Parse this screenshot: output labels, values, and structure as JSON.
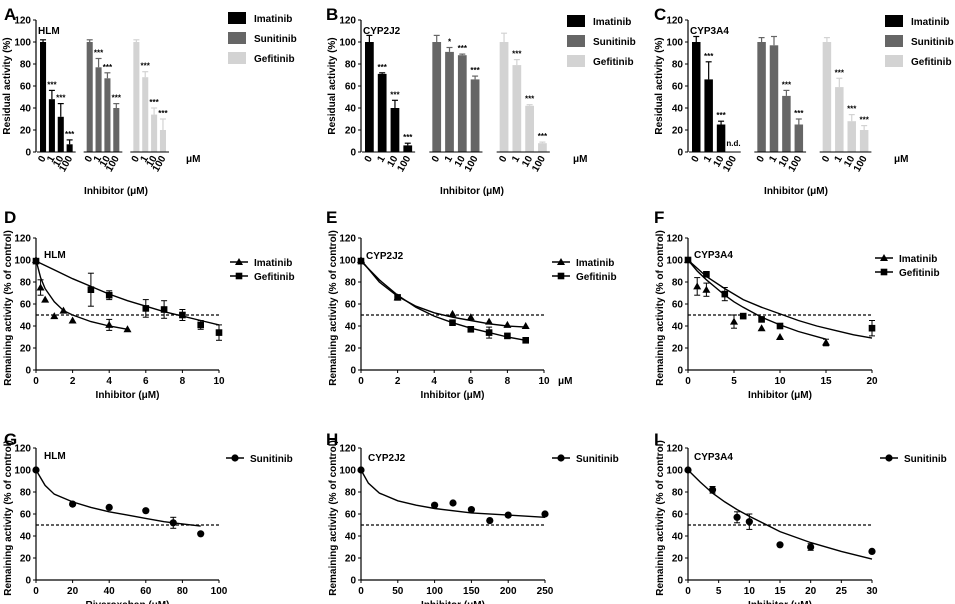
{
  "colors": {
    "imatinib": "#000000",
    "sunitinib": "#666666",
    "gefitinib": "#d3d3d3"
  },
  "chart_data": [
    {
      "panel": "A",
      "type": "bar",
      "title": "HLM",
      "ylabel": "Residual activity (%)",
      "xlabel": "Inhibitor (μM)",
      "unit": "μM",
      "ylim": [
        0,
        120
      ],
      "yticks": [
        0,
        20,
        40,
        60,
        80,
        100,
        120
      ],
      "concentrations": [
        "0",
        "1",
        "10",
        "100"
      ],
      "series": [
        {
          "name": "Imatinib",
          "color": "#000000",
          "values": [
            100,
            48,
            32,
            7
          ],
          "errors": [
            2,
            8,
            12,
            4
          ],
          "labels": [
            "",
            "***",
            "***",
            "***"
          ]
        },
        {
          "name": "Sunitinib",
          "color": "#666666",
          "values": [
            100,
            77,
            67,
            40
          ],
          "errors": [
            2,
            8,
            5,
            4
          ],
          "labels": [
            "",
            "***",
            "***",
            "***"
          ]
        },
        {
          "name": "Gefitinib",
          "color": "#d3d3d3",
          "values": [
            100,
            68,
            34,
            20
          ],
          "errors": [
            2,
            5,
            6,
            10
          ],
          "labels": [
            "",
            "***",
            "***",
            "***"
          ]
        }
      ]
    },
    {
      "panel": "B",
      "type": "bar",
      "title": "CYP2J2",
      "ylabel": "Residual activity (%)",
      "xlabel": "Inhibitor (μM)",
      "unit": "μM",
      "ylim": [
        0,
        120
      ],
      "yticks": [
        0,
        20,
        40,
        60,
        80,
        100,
        120
      ],
      "concentrations": [
        "0",
        "1",
        "10",
        "100"
      ],
      "series": [
        {
          "name": "Imatinib",
          "color": "#000000",
          "values": [
            100,
            71,
            40,
            6
          ],
          "errors": [
            6,
            1,
            7,
            2
          ],
          "labels": [
            "",
            "***",
            "***",
            "***"
          ]
        },
        {
          "name": "Sunitinib",
          "color": "#666666",
          "values": [
            100,
            91,
            88,
            66
          ],
          "errors": [
            6,
            4,
            1,
            3
          ],
          "labels": [
            "",
            "*",
            "***",
            "***"
          ]
        },
        {
          "name": "Gefitinib",
          "color": "#d3d3d3",
          "values": [
            100,
            79,
            42,
            8
          ],
          "errors": [
            8,
            5,
            1,
            1
          ],
          "labels": [
            "",
            "***",
            "***",
            "***"
          ]
        }
      ]
    },
    {
      "panel": "C",
      "type": "bar",
      "title": "CYP3A4",
      "ylabel": "Residual activity (%)",
      "xlabel": "Inhibitor (μM)",
      "unit": "μM",
      "ylim": [
        0,
        120
      ],
      "yticks": [
        0,
        20,
        40,
        60,
        80,
        100,
        120
      ],
      "concentrations": [
        "0",
        "1",
        "10",
        "100"
      ],
      "series": [
        {
          "name": "Imatinib",
          "color": "#000000",
          "values": [
            100,
            66,
            25,
            0
          ],
          "errors": [
            5,
            16,
            3,
            0
          ],
          "labels": [
            "",
            "***",
            "***",
            "n.d."
          ]
        },
        {
          "name": "Sunitinib",
          "color": "#666666",
          "values": [
            100,
            97,
            51,
            25
          ],
          "errors": [
            4,
            8,
            5,
            5
          ],
          "labels": [
            "",
            "",
            "***",
            "***"
          ]
        },
        {
          "name": "Gefitinib",
          "color": "#d3d3d3",
          "values": [
            100,
            59,
            28,
            20
          ],
          "errors": [
            4,
            8,
            6,
            4
          ],
          "labels": [
            "",
            "***",
            "***",
            "***"
          ]
        }
      ]
    },
    {
      "panel": "D",
      "type": "scatter",
      "title": "HLM",
      "ylabel": "Remaining activity (% of control)",
      "xlabel": "Inhibitor (μM)",
      "unit": "",
      "xlim": [
        0,
        10
      ],
      "xticks": [
        0,
        2,
        4,
        6,
        8,
        10
      ],
      "ylim": [
        0,
        120
      ],
      "yticks": [
        0,
        20,
        40,
        60,
        80,
        100,
        120
      ],
      "dashed": 50,
      "series": [
        {
          "name": "Imatinib",
          "marker": "triangle",
          "x": [
            0,
            0.25,
            0.5,
            1,
            1.5,
            2,
            4,
            5
          ],
          "y": [
            100,
            75,
            64,
            49,
            54,
            45,
            41,
            37
          ],
          "err": [
            0,
            7,
            0,
            0,
            0,
            0,
            5,
            0
          ],
          "fit": [
            [
              0,
              100
            ],
            [
              0.25,
              84
            ],
            [
              0.5,
              74
            ],
            [
              1,
              62
            ],
            [
              1.5,
              54
            ],
            [
              2,
              50
            ],
            [
              3,
              44
            ],
            [
              4,
              40
            ],
            [
              5,
              37
            ]
          ]
        },
        {
          "name": "Gefitinib",
          "marker": "square",
          "x": [
            0,
            3,
            4,
            6,
            7,
            8,
            9,
            10
          ],
          "y": [
            99,
            73,
            68,
            56,
            55,
            50,
            41,
            34
          ],
          "err": [
            0,
            15,
            4,
            8,
            8,
            5,
            4,
            7
          ],
          "fit": [
            [
              0,
              99
            ],
            [
              1,
              91
            ],
            [
              2,
              83
            ],
            [
              3,
              76
            ],
            [
              4,
              69
            ],
            [
              5,
              63
            ],
            [
              6,
              58
            ],
            [
              7,
              53
            ],
            [
              8,
              49
            ],
            [
              9,
              45
            ],
            [
              10,
              41
            ]
          ]
        }
      ]
    },
    {
      "panel": "E",
      "type": "scatter",
      "title": "CYP2J2",
      "ylabel": "Remaining activity (% of control)",
      "xlabel": "Inhibitor (μM)",
      "unit": "μM",
      "xlim": [
        0,
        10
      ],
      "xticks": [
        0,
        2,
        4,
        6,
        8,
        10
      ],
      "ylim": [
        0,
        120
      ],
      "yticks": [
        0,
        20,
        40,
        60,
        80,
        100,
        120
      ],
      "dashed": 50,
      "series": [
        {
          "name": "Imatinib",
          "marker": "triangle",
          "x": [
            0,
            2,
            5,
            6,
            7,
            8,
            9
          ],
          "y": [
            100,
            66,
            51,
            48,
            44,
            41,
            40
          ],
          "err": [
            0,
            0,
            0,
            0,
            0,
            0,
            0
          ],
          "fit": [
            [
              0,
              100
            ],
            [
              1,
              80
            ],
            [
              2,
              67
            ],
            [
              3,
              58
            ],
            [
              4,
              52
            ],
            [
              5,
              48
            ],
            [
              6,
              45
            ],
            [
              7,
              42
            ],
            [
              8,
              40
            ],
            [
              9,
              39
            ]
          ]
        },
        {
          "name": "Gefitinib",
          "marker": "square",
          "x": [
            0,
            2,
            5,
            6,
            7,
            8,
            9
          ],
          "y": [
            99,
            66,
            43,
            37,
            34,
            31,
            27
          ],
          "err": [
            0,
            0,
            0,
            0,
            5,
            0,
            0
          ],
          "fit": [
            [
              0,
              99
            ],
            [
              1,
              82
            ],
            [
              2,
              68
            ],
            [
              3,
              57
            ],
            [
              4,
              49
            ],
            [
              5,
              43
            ],
            [
              6,
              38
            ],
            [
              7,
              34
            ],
            [
              8,
              30
            ],
            [
              9,
              27
            ]
          ]
        }
      ]
    },
    {
      "panel": "F",
      "type": "scatter",
      "title": "CYP3A4",
      "ylabel": "Remaining activity (% of control)",
      "xlabel": "Inhibitor (μM)",
      "unit": "",
      "xlim": [
        0,
        20
      ],
      "xticks": [
        0,
        5,
        10,
        15,
        20
      ],
      "ylim": [
        0,
        120
      ],
      "yticks": [
        0,
        20,
        40,
        60,
        80,
        100,
        120
      ],
      "dashed": 50,
      "series": [
        {
          "name": "Imatinib",
          "marker": "triangle",
          "x": [
            0,
            1,
            2,
            5,
            8,
            10,
            15
          ],
          "y": [
            100,
            76,
            73,
            44,
            38,
            30,
            25
          ],
          "err": [
            0,
            8,
            6,
            6,
            0,
            0,
            3
          ],
          "fit": [
            [
              0,
              100
            ],
            [
              1,
              90
            ],
            [
              2,
              82
            ],
            [
              3,
              75
            ],
            [
              4,
              68
            ],
            [
              5,
              62
            ],
            [
              6,
              57
            ],
            [
              8,
              48
            ],
            [
              10,
              41
            ],
            [
              12,
              35
            ],
            [
              15,
              28
            ]
          ]
        },
        {
          "name": "Gefitinib",
          "marker": "square",
          "x": [
            0,
            2,
            4,
            6,
            8,
            10,
            20
          ],
          "y": [
            100,
            87,
            69,
            49,
            46,
            40,
            38
          ],
          "err": [
            0,
            0,
            6,
            0,
            0,
            0,
            7
          ],
          "fit": [
            [
              0,
              100
            ],
            [
              2,
              85
            ],
            [
              4,
              74
            ],
            [
              6,
              64
            ],
            [
              8,
              57
            ],
            [
              10,
              51
            ],
            [
              12,
              45
            ],
            [
              14,
              40
            ],
            [
              16,
              36
            ],
            [
              18,
              32
            ],
            [
              20,
              29
            ]
          ]
        }
      ]
    },
    {
      "panel": "G",
      "type": "scatter",
      "title": "HLM",
      "ylabel": "Remaining activity (% of control)",
      "xlabel": "Rivaroxaban (μM)",
      "unit": "",
      "xlim": [
        0,
        100
      ],
      "xticks": [
        0,
        20,
        40,
        60,
        80,
        100
      ],
      "ylim": [
        0,
        120
      ],
      "yticks": [
        0,
        20,
        40,
        60,
        80,
        100,
        120
      ],
      "dashed": 50,
      "series": [
        {
          "name": "Sunitinib",
          "marker": "circle",
          "x": [
            0,
            20,
            40,
            60,
            75,
            90
          ],
          "y": [
            100,
            69,
            66,
            63,
            52,
            42
          ],
          "err": [
            0,
            0,
            0,
            0,
            5,
            0
          ],
          "fit": [
            [
              0,
              100
            ],
            [
              5,
              86
            ],
            [
              10,
              78
            ],
            [
              20,
              71
            ],
            [
              30,
              66
            ],
            [
              40,
              62
            ],
            [
              50,
              59
            ],
            [
              60,
              56
            ],
            [
              70,
              53
            ],
            [
              80,
              51
            ],
            [
              90,
              49
            ]
          ]
        }
      ]
    },
    {
      "panel": "H",
      "type": "scatter",
      "title": "CYP2J2",
      "ylabel": "Remaining activity (% of control)",
      "xlabel": "Inhibitor (μM)",
      "unit": "",
      "xlim": [
        0,
        250
      ],
      "xticks": [
        0,
        50,
        100,
        150,
        200,
        250
      ],
      "ylim": [
        0,
        120
      ],
      "yticks": [
        0,
        20,
        40,
        60,
        80,
        100,
        120
      ],
      "dashed": 50,
      "series": [
        {
          "name": "Sunitinib",
          "marker": "circle",
          "x": [
            0,
            100,
            125,
            150,
            175,
            200,
            250
          ],
          "y": [
            100,
            68,
            70,
            64,
            54,
            59,
            60
          ],
          "err": [
            0,
            0,
            0,
            0,
            0,
            0,
            0
          ],
          "fit": [
            [
              0,
              100
            ],
            [
              10,
              88
            ],
            [
              25,
              79
            ],
            [
              50,
              72
            ],
            [
              75,
              68
            ],
            [
              100,
              65
            ],
            [
              150,
              61
            ],
            [
              200,
              59
            ],
            [
              250,
              57
            ]
          ]
        }
      ]
    },
    {
      "panel": "I",
      "type": "scatter",
      "title": "CYP3A4",
      "ylabel": "Remaining activity (% of control)",
      "xlabel": "Inhibitor (μM)",
      "unit": "",
      "xlim": [
        0,
        30
      ],
      "xticks": [
        0,
        5,
        10,
        15,
        20,
        25,
        30
      ],
      "ylim": [
        0,
        120
      ],
      "yticks": [
        0,
        20,
        40,
        60,
        80,
        100,
        120
      ],
      "dashed": 50,
      "series": [
        {
          "name": "Sunitinib",
          "marker": "circle",
          "x": [
            0,
            4,
            8,
            10,
            15,
            20,
            30
          ],
          "y": [
            100,
            82,
            57,
            53,
            32,
            30,
            26
          ],
          "err": [
            0,
            3,
            5,
            7,
            0,
            3,
            0
          ],
          "fit": [
            [
              0,
              100
            ],
            [
              2,
              89
            ],
            [
              4,
              79
            ],
            [
              6,
              71
            ],
            [
              8,
              64
            ],
            [
              10,
              58
            ],
            [
              15,
              44
            ],
            [
              20,
              34
            ],
            [
              25,
              26
            ],
            [
              30,
              19
            ]
          ]
        }
      ]
    }
  ]
}
